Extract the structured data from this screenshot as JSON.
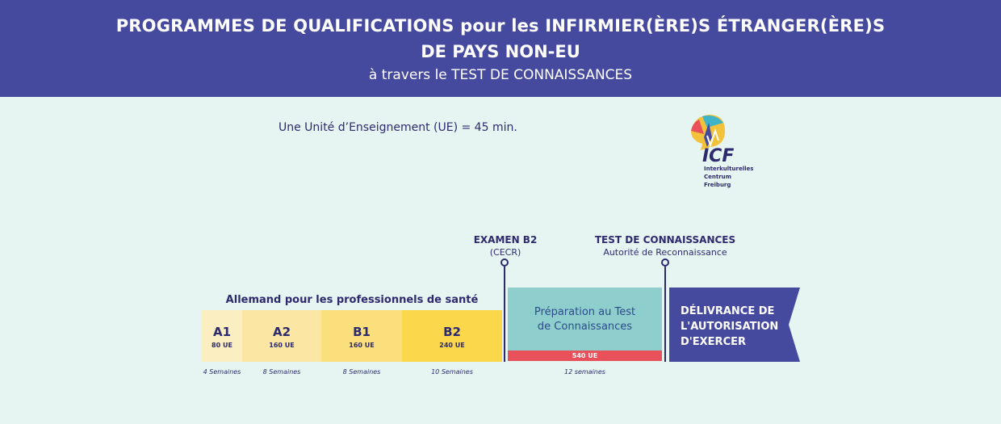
{
  "header": {
    "title_line1": "PROGRAMMES DE QUALIFICATIONS pour les INFIRMIER(ÈRE)S ÉTRANGER(ÈRE)S",
    "title_line2": "DE PAYS NON-EU",
    "subtitle": "à travers le TEST DE CONNAISSANCES"
  },
  "ue_note": "Une Unité d’Enseignement (UE) = 45 min.",
  "logo": {
    "abbr": "ICF",
    "line1": "Interkulturelles",
    "line2": "Centrum",
    "line3": "Freiburg"
  },
  "markers": {
    "exam": {
      "title": "EXAMEN B2",
      "sub": "(CECR)"
    },
    "test": {
      "title": "TEST DE CONNAISSANCES",
      "sub": "Autorité de Reconnaissance"
    }
  },
  "language_section": "Allemand pour les professionnels de santé",
  "levels": [
    {
      "level": "A1",
      "hours": "80 UE",
      "duration": "4 Semaines",
      "color": "#fbeec0"
    },
    {
      "level": "A2",
      "hours": "160 UE",
      "duration": "8 Semaines",
      "color": "#fbe6a3"
    },
    {
      "level": "B1",
      "hours": "160 UE",
      "duration": "8 Semaines",
      "color": "#fbdf7c"
    },
    {
      "level": "B2",
      "hours": "240 UE",
      "duration": "10 Semaines",
      "color": "#fbd74c"
    }
  ],
  "preparation": {
    "line1": "Préparation au Test",
    "line2": "de Connaissances",
    "hours": "540 UE",
    "duration": "12 semaines"
  },
  "delivery": {
    "line1": "DÉLIVRANCE DE",
    "line2": "L'AUTORISATION",
    "line3": "D'EXERCER"
  },
  "colors": {
    "header_bg": "#464a9e",
    "page_bg": "#e6f4f2",
    "prep_bg": "#8ecfce",
    "prep_bar": "#e8505a",
    "delivery_bg": "#464a9e",
    "text_dark": "#2d2a6e"
  }
}
